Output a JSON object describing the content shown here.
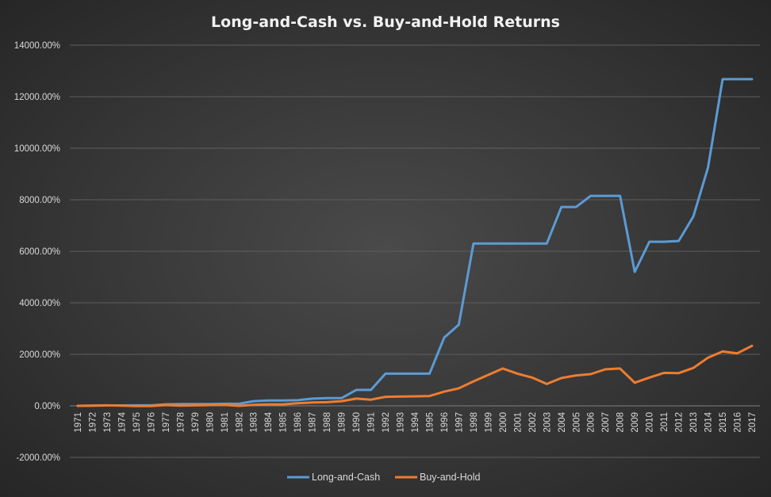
{
  "chart_data": {
    "type": "line",
    "title": "Long-and-Cash  vs.  Buy-and-Hold  Returns",
    "xlabel": "",
    "ylabel": "",
    "ylim": [
      -2000,
      14000
    ],
    "y_ticks": [
      -2000,
      0,
      2000,
      4000,
      6000,
      8000,
      10000,
      12000,
      14000
    ],
    "y_tick_format": "percent_2dp",
    "grid": true,
    "legend_position": "bottom",
    "x": [
      "1971",
      "1972",
      "1973",
      "1974",
      "1975",
      "1976",
      "1977",
      "1978",
      "1979",
      "1980",
      "1981",
      "1982",
      "1983",
      "1984",
      "1985",
      "1986",
      "1987",
      "1988",
      "1989",
      "1990",
      "1991",
      "1992",
      "1993",
      "1994",
      "1995",
      "1996",
      "1997",
      "1998",
      "1999",
      "2000",
      "2001",
      "2002",
      "2003",
      "2004",
      "2005",
      "2006",
      "2007",
      "2008",
      "2009",
      "2010",
      "2011",
      "2012",
      "2013",
      "2014",
      "2015",
      "2016",
      "2017"
    ],
    "series": [
      {
        "name": "Long-and-Cash",
        "color": "#5b9bd5",
        "values": [
          0,
          10,
          15,
          15,
          20,
          20,
          60,
          70,
          70,
          70,
          80,
          80,
          180,
          210,
          210,
          220,
          280,
          300,
          300,
          620,
          620,
          1250,
          1250,
          1250,
          1250,
          2650,
          3150,
          6300,
          6300,
          6300,
          6300,
          6300,
          6300,
          7720,
          7720,
          8150,
          8150,
          8150,
          5200,
          6370,
          6370,
          6400,
          7350,
          9250,
          12680,
          12680,
          12680
        ]
      },
      {
        "name": "Buy-and-Hold",
        "color": "#ed7d31",
        "values": [
          0,
          10,
          20,
          5,
          -10,
          -5,
          30,
          10,
          20,
          30,
          40,
          0,
          40,
          60,
          60,
          100,
          130,
          140,
          180,
          280,
          240,
          350,
          360,
          370,
          380,
          550,
          680,
          950,
          1200,
          1450,
          1250,
          1100,
          850,
          1080,
          1180,
          1230,
          1420,
          1450,
          900,
          1100,
          1280,
          1270,
          1470,
          1870,
          2110,
          2040,
          2330
        ]
      }
    ]
  }
}
